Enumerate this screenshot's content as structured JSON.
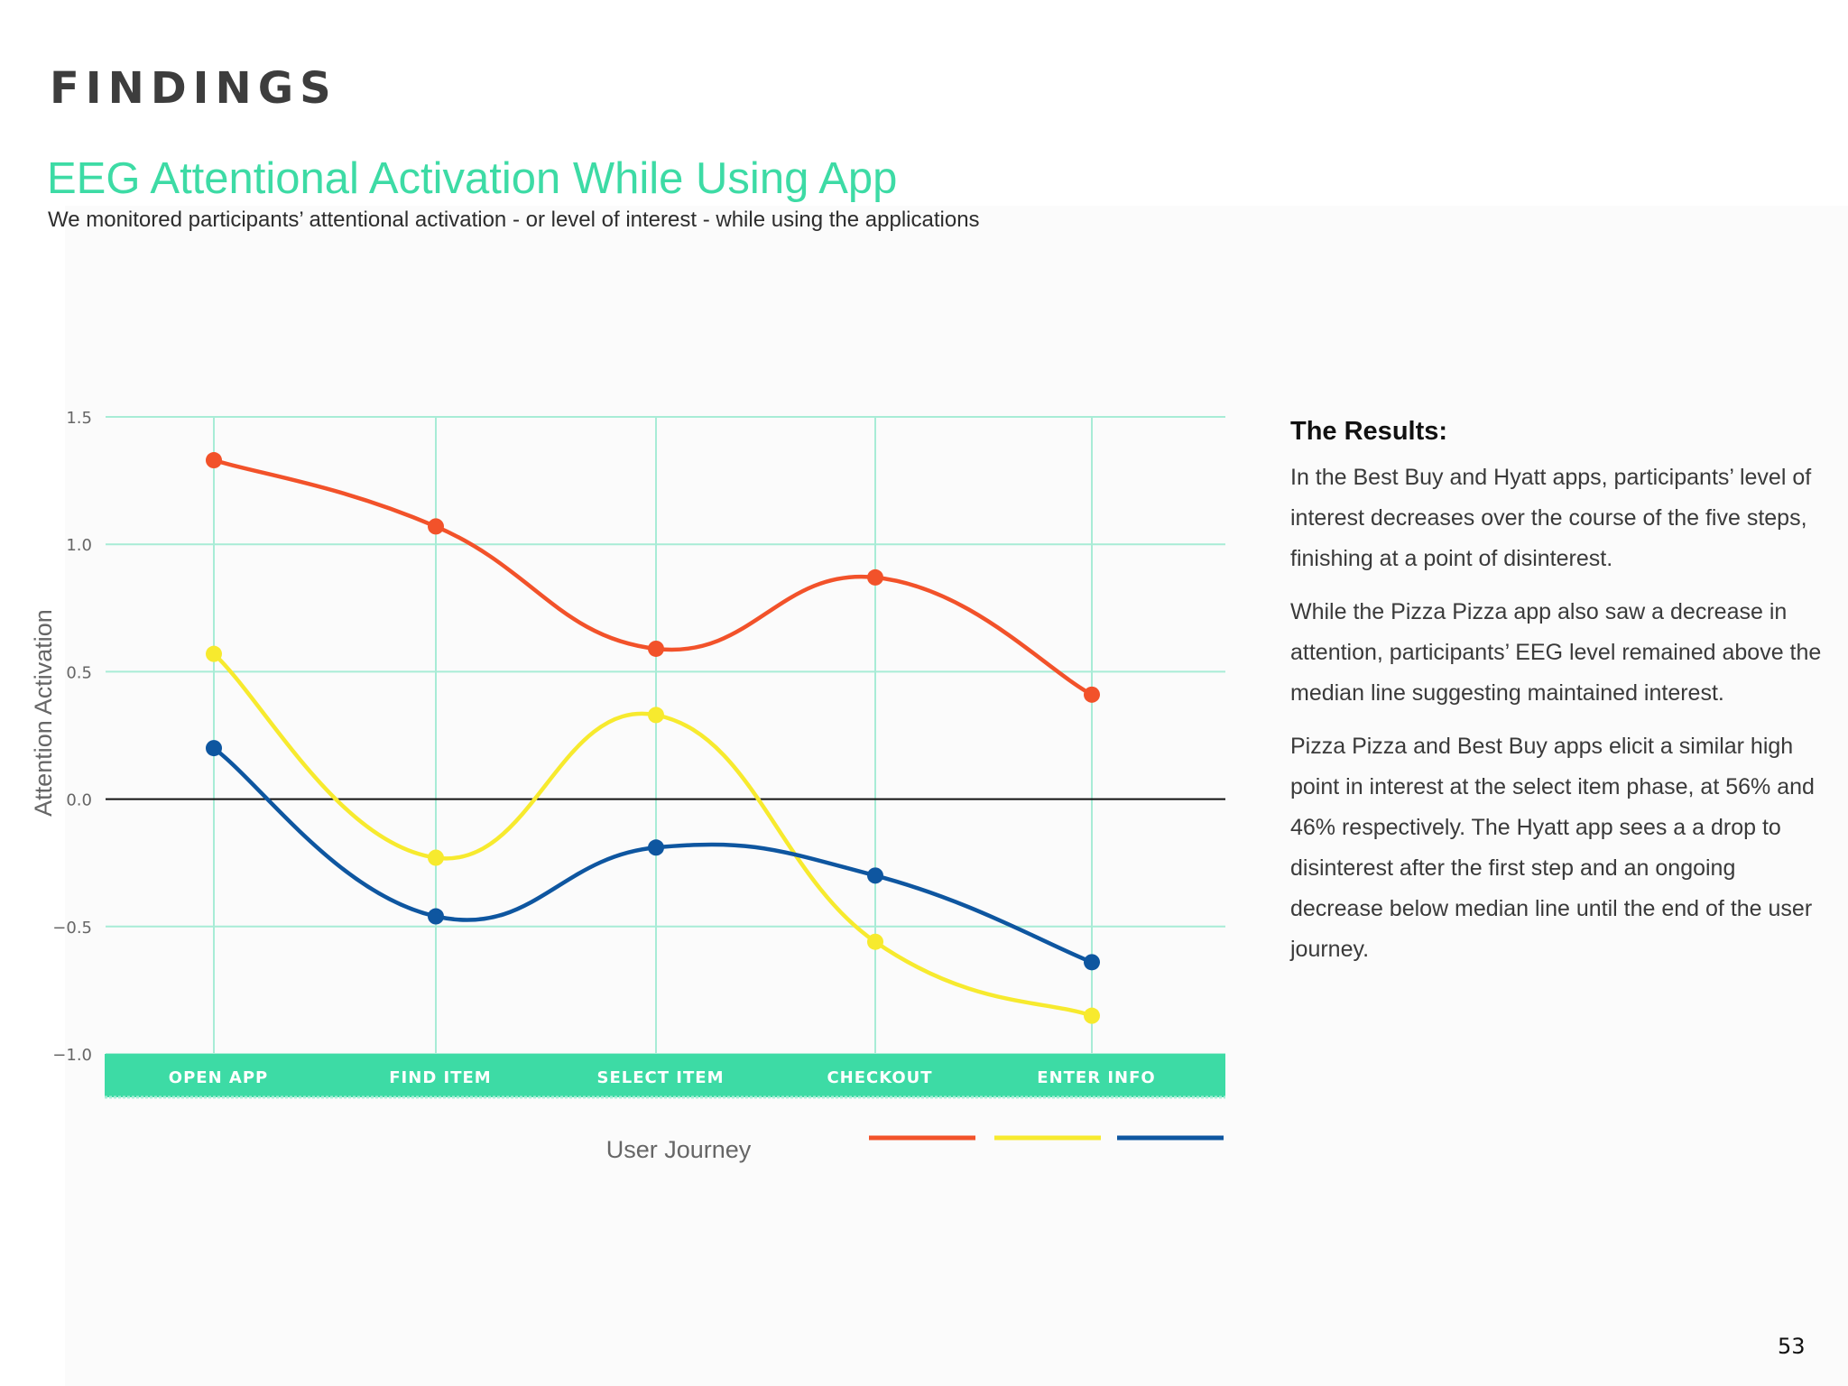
{
  "section_title": "FINDINGS",
  "chart_title": "EEG Attentional Activation While Using App",
  "chart_subtitle": "We monitored participants’ attentional activation - or level of interest - while using the applications",
  "results": {
    "heading": "The Results:",
    "paragraphs": [
      "In the Best Buy and Hyatt apps, participants’ level of interest decreases over the course of the five steps, finishing at a point of disinterest.",
      "While the Pizza Pizza app also saw a decrease in attention, participants’ EEG level remained above the median line suggesting maintained interest.",
      "Pizza Pizza and Best Buy apps elicit a similar high point in interest at the select item phase, at 56% and 46% respectively. The Hyatt app sees a a drop to disinterest after the first step and an ongoing decrease below median line until the end of the user journey."
    ]
  },
  "page_number": "53",
  "colors": {
    "accent": "#3ddba5",
    "grid": "#a8ecd6",
    "series_orange": "#f2522a",
    "series_yellow": "#f7ea2e",
    "series_blue": "#0e56a0"
  },
  "chart_data": {
    "type": "line",
    "title": "",
    "xlabel": "User Journey",
    "ylabel": "Attention Activation",
    "categories": [
      "OPEN APP",
      "FIND ITEM",
      "SELECT ITEM",
      "CHECKOUT",
      "ENTER INFO"
    ],
    "yticks": [
      "1.5",
      "1.0",
      "0.5",
      "0.0",
      "-0.5",
      "-1.0"
    ],
    "ylim": [
      -1.0,
      1.5
    ],
    "grid": true,
    "median_line": 0.0,
    "legend_position": "bottom-right",
    "series": [
      {
        "color": "#f2522a",
        "values": [
          1.33,
          1.07,
          0.59,
          0.87,
          0.41
        ]
      },
      {
        "color": "#f7ea2e",
        "values": [
          0.57,
          -0.23,
          0.33,
          -0.56,
          -0.85
        ]
      },
      {
        "color": "#0e56a0",
        "values": [
          0.2,
          -0.46,
          -0.19,
          -0.3,
          -0.64
        ]
      }
    ]
  }
}
